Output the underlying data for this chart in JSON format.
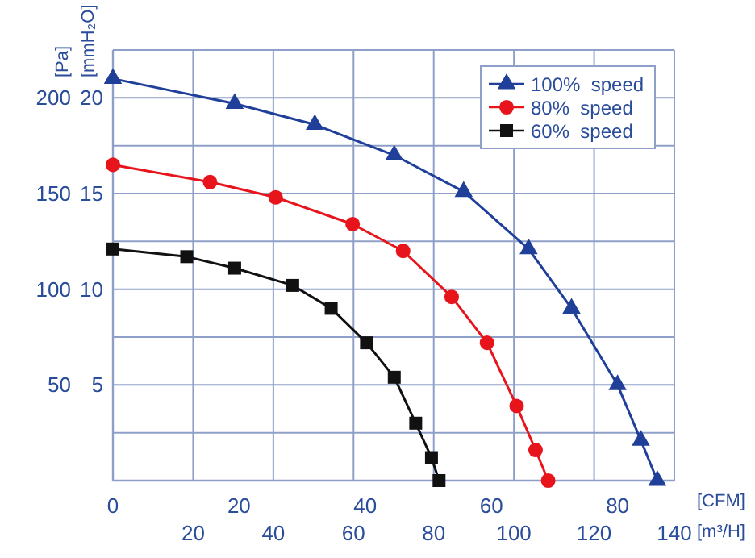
{
  "chart_data": {
    "type": "line",
    "xlabel": "[CFM]",
    "x2label": "[m³/H]",
    "ylabel": "[Pa]",
    "y2label": "[mmH₂O]",
    "xlim": [
      0,
      89
    ],
    "xticks": [
      0,
      20,
      40,
      60,
      80
    ],
    "x2lim": [
      0,
      140
    ],
    "x2ticks": [
      20,
      40,
      60,
      80,
      100,
      120,
      140
    ],
    "ylim": [
      0,
      225
    ],
    "yticks": [
      50,
      100,
      150,
      200
    ],
    "y2lim": [
      0,
      22.5
    ],
    "y2ticks": [
      5,
      10,
      15,
      20
    ],
    "grid": true,
    "legend": "top right",
    "line_style": "solid",
    "series": [
      {
        "name": "100%  speed",
        "color": "#1f3f99",
        "marker": "triangle",
        "x": [
          0,
          19.3,
          32,
          44.6,
          55.6,
          65.9,
          72.7,
          80,
          83.7,
          86.3
        ],
        "values": [
          210,
          197,
          186,
          170,
          151,
          121,
          90,
          50,
          21,
          0
        ]
      },
      {
        "name": "80%  speed",
        "color": "#e8141c",
        "marker": "circle",
        "x": [
          0,
          15.4,
          25.8,
          38,
          46,
          53.7,
          59.3,
          64,
          67,
          69
        ],
        "values": [
          165,
          156,
          148,
          134,
          120,
          96,
          72,
          39,
          16,
          0
        ]
      },
      {
        "name": "60%  speed",
        "color": "#111111",
        "marker": "square",
        "x": [
          0,
          11.7,
          19.3,
          28.5,
          34.6,
          40.2,
          44.6,
          48,
          50.5,
          51.7
        ],
        "values": [
          121,
          117,
          111,
          102,
          90,
          72,
          54,
          30,
          12,
          0
        ]
      }
    ]
  }
}
